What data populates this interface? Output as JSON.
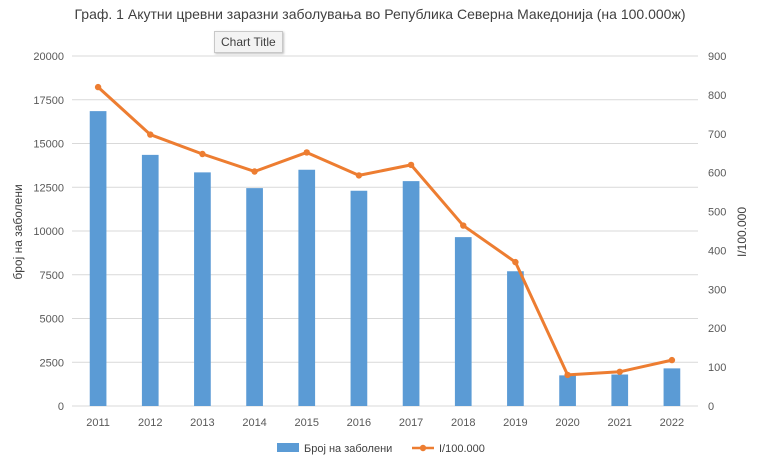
{
  "tooltip": "Chart Title",
  "colors": {
    "bars": "#5b9bd5",
    "line": "#ed7d31",
    "grid": "#d9d9d9",
    "text": "#595959"
  },
  "chart_data": {
    "type": "bar",
    "title": "Граф. 1 Акутни цревни заразни заболувања во Република Северна Македонија (на 100.000ж)",
    "categories": [
      "2011",
      "2012",
      "2013",
      "2014",
      "2015",
      "2016",
      "2017",
      "2018",
      "2019",
      "2020",
      "2021",
      "2022"
    ],
    "ylabel": "број на заболени",
    "y2label": "I/100.000",
    "ylim": [
      0,
      20000
    ],
    "y2lim": [
      0,
      900
    ],
    "yticks": [
      "0",
      "2500",
      "5000",
      "7500",
      "10000",
      "12500",
      "15000",
      "17500",
      "20000"
    ],
    "y2ticks": [
      "0",
      "100",
      "200",
      "300",
      "400",
      "500",
      "600",
      "700",
      "800",
      "900"
    ],
    "grid": true,
    "legend_position": "bottom",
    "series": [
      {
        "name": "Број на заболени",
        "type": "bar",
        "axis": "left",
        "values": [
          16850,
          14350,
          13350,
          12450,
          13500,
          12300,
          12850,
          9650,
          7700,
          1750,
          1800,
          2150
        ]
      },
      {
        "name": "I/100.000",
        "type": "line",
        "axis": "right",
        "values": [
          820,
          698,
          648,
          603,
          652,
          593,
          620,
          464,
          370,
          80,
          88,
          118
        ]
      }
    ]
  }
}
